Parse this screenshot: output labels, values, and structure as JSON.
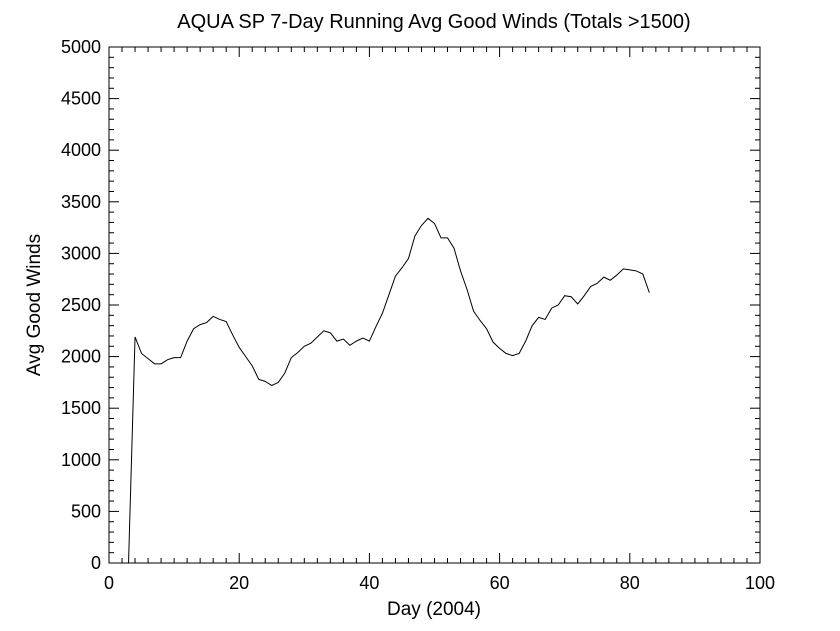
{
  "chart_data": {
    "type": "line",
    "title": "AQUA SP 7-Day Running Avg Good Winds (Totals >1500)",
    "xlabel": "Day (2004)",
    "ylabel": "Avg Good Winds",
    "xlim": [
      0,
      100
    ],
    "ylim": [
      0,
      5000
    ],
    "x_ticks": [
      0,
      20,
      40,
      60,
      80,
      100
    ],
    "y_ticks": [
      0,
      500,
      1000,
      1500,
      2000,
      2500,
      3000,
      3500,
      4000,
      4500,
      5000
    ],
    "grid": false,
    "line_color": "#000000",
    "series": [
      {
        "x": [
          3,
          4,
          5,
          6,
          7,
          8,
          9,
          10,
          11,
          12,
          13,
          14,
          15,
          16,
          17,
          18,
          19,
          20,
          21,
          22,
          23,
          24,
          25,
          26,
          27,
          28,
          29,
          30,
          31,
          32,
          33,
          34,
          35,
          36,
          37,
          38,
          39,
          40,
          41,
          42,
          43,
          44,
          45,
          46,
          47,
          48,
          49,
          50,
          51,
          52,
          53,
          54,
          55,
          56,
          57,
          58,
          59,
          60,
          61,
          62,
          63,
          64,
          65,
          66,
          67,
          68,
          69,
          70,
          71,
          72,
          73,
          74,
          75,
          76,
          77,
          78,
          79,
          80,
          81,
          82,
          83
        ],
        "y": [
          0,
          2190,
          2030,
          1980,
          1930,
          1930,
          1970,
          1990,
          1990,
          2150,
          2270,
          2310,
          2330,
          2390,
          2360,
          2340,
          2210,
          2090,
          2000,
          1910,
          1780,
          1760,
          1720,
          1750,
          1840,
          1990,
          2040,
          2100,
          2130,
          2190,
          2250,
          2230,
          2150,
          2170,
          2110,
          2150,
          2180,
          2150,
          2290,
          2420,
          2600,
          2780,
          2860,
          2950,
          3170,
          3270,
          3340,
          3290,
          3150,
          3150,
          3050,
          2830,
          2650,
          2440,
          2350,
          2270,
          2140,
          2080,
          2030,
          2010,
          2030,
          2150,
          2300,
          2380,
          2360,
          2470,
          2500,
          2590,
          2580,
          2510,
          2590,
          2680,
          2710,
          2770,
          2740,
          2790,
          2850,
          2840,
          2830,
          2800,
          2620
        ]
      }
    ]
  }
}
